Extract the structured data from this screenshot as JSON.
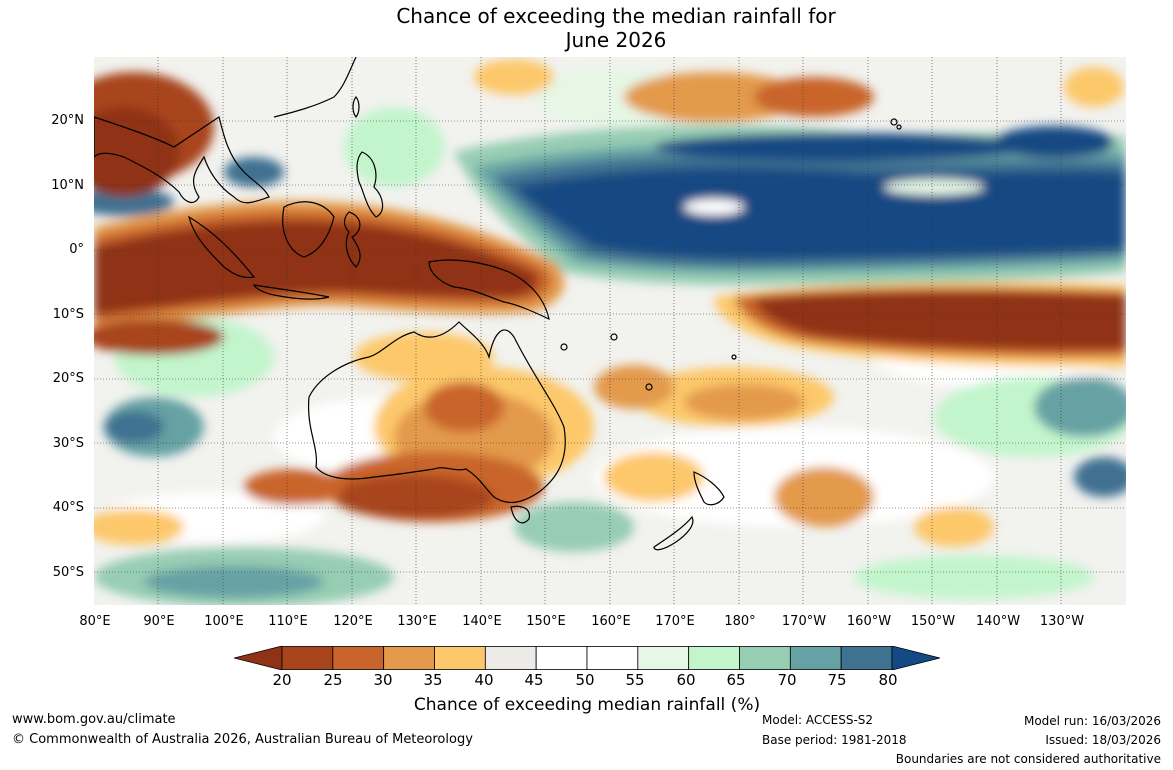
{
  "title": {
    "line1": "Chance of exceeding the median rainfall for",
    "line2": "June 2026"
  },
  "map": {
    "lat_labels": [
      "20°N",
      "10°N",
      "0°",
      "10°S",
      "20°S",
      "30°S",
      "40°S",
      "50°S"
    ],
    "lon_labels": [
      "80°E",
      "90°E",
      "100°E",
      "110°E",
      "120°E",
      "130°E",
      "140°E",
      "150°E",
      "160°E",
      "170°E",
      "180°",
      "170°W",
      "160°W",
      "150°W",
      "140°W",
      "130°W"
    ]
  },
  "legend": {
    "ticks": [
      "20",
      "25",
      "30",
      "35",
      "40",
      "45",
      "50",
      "55",
      "60",
      "65",
      "70",
      "75",
      "80"
    ],
    "title": "Chance of exceeding median rainfall (%)",
    "colors": [
      "#8f3216",
      "#a8441c",
      "#c9652c",
      "#e39a4b",
      "#fdc86b",
      "#ecebe7",
      "#ffffff",
      "#ffffff",
      "#e6f7e6",
      "#c2f5cc",
      "#97cdb3",
      "#66a1a4",
      "#3f7191",
      "#134a83"
    ]
  },
  "footer": {
    "url": "www.bom.gov.au/climate",
    "copyright": "© Commonwealth of Australia 2026, Australian Bureau of Meteorology",
    "model": "Model: ACCESS-S2",
    "base_period": "Base period: 1981-2018",
    "model_run": "Model run: 16/03/2026",
    "issued": "Issued: 18/03/2026",
    "disclaimer": "Boundaries are not considered authoritative"
  }
}
